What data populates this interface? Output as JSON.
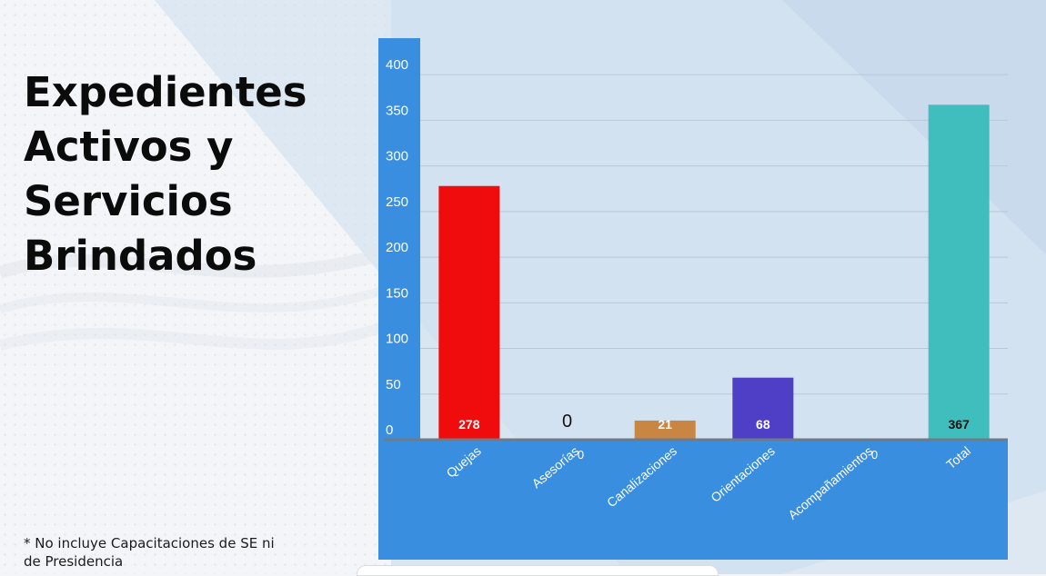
{
  "heading": {
    "lines": [
      "Expedientes",
      "Activos y",
      "Servicios",
      "Brindados"
    ]
  },
  "footnote": {
    "line1": "* No incluye Capacitaciones de SE ni",
    "line2": "de Presidencia"
  },
  "colors": {
    "axis_panel": "#3a8ee0",
    "category_panel": "#3a8ee0",
    "gridline": "#b8c7d6",
    "baseline": "#6e7b88"
  },
  "chart_data": {
    "type": "bar",
    "categories": [
      "Quejas",
      "Asesorías",
      "Canalizaciones",
      "Orientaciones",
      "Acompañamientos",
      "Total"
    ],
    "values": [
      278,
      0,
      21,
      68,
      0,
      367
    ],
    "data_labels": [
      "278",
      "0",
      "21",
      "68",
      "",
      "367"
    ],
    "colors": [
      "#f00c0c",
      "#f00c0c",
      "#c98642",
      "#4f3fc7",
      "#4f3fc7",
      "#3fbebd"
    ],
    "label_colors": [
      "#ffffff",
      "#111111",
      "#ffffff",
      "#ffffff",
      "#ffffff",
      "#111111"
    ],
    "hidden_value_glyph": "0",
    "yticks": [
      0,
      50,
      100,
      150,
      200,
      250,
      300,
      350,
      400
    ],
    "ylim": [
      0,
      440
    ],
    "title": "",
    "xlabel": "",
    "ylabel": "",
    "grid": true,
    "legend": "none"
  }
}
